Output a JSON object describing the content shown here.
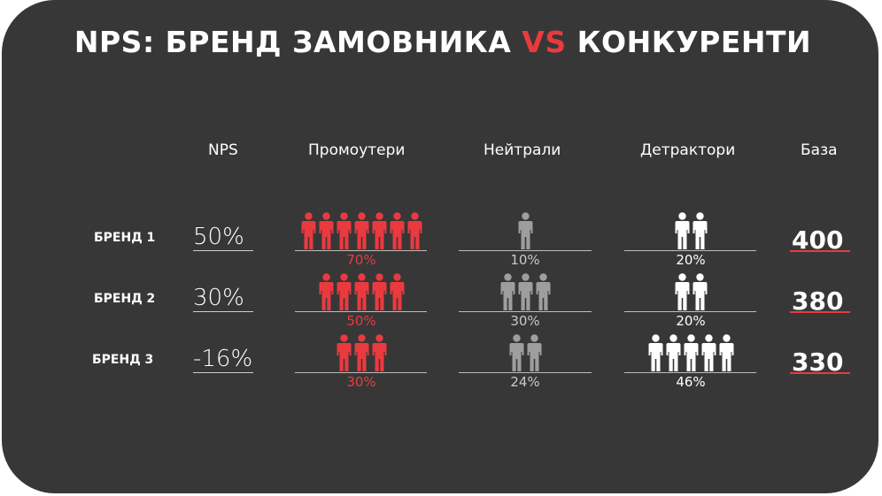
{
  "title": {
    "part1": "NPS: БРЕНД ЗАМОВНИКА ",
    "vs": "VS",
    "part2": " КОНКУРЕНТИ"
  },
  "headers": {
    "nps": "NPS",
    "promoters": "Промоутери",
    "neutrals": "Нейтрали",
    "detractors": "Детрактори",
    "base": "База"
  },
  "colors": {
    "background": "#373737",
    "accent": "#ea3a3f",
    "promoter": "#ea3a3f",
    "neutral": "#9e9e9e",
    "detractor": "#ffffff"
  },
  "rows": [
    {
      "brand": "БРЕНД 1",
      "nps": "50%",
      "promoters": {
        "pct": "70%",
        "icons": 7
      },
      "neutrals": {
        "pct": "10%",
        "icons": 1
      },
      "detractors": {
        "pct": "20%",
        "icons": 2
      },
      "base": "400"
    },
    {
      "brand": "БРЕНД 2",
      "nps": "30%",
      "promoters": {
        "pct": "50%",
        "icons": 5
      },
      "neutrals": {
        "pct": "30%",
        "icons": 3
      },
      "detractors": {
        "pct": "20%",
        "icons": 2
      },
      "base": "380"
    },
    {
      "brand": "БРЕНД 3",
      "nps": "-16%",
      "promoters": {
        "pct": "30%",
        "icons": 3
      },
      "neutrals": {
        "pct": "24%",
        "icons": 2
      },
      "detractors": {
        "pct": "46%",
        "icons": 5
      },
      "base": "330"
    }
  ]
}
